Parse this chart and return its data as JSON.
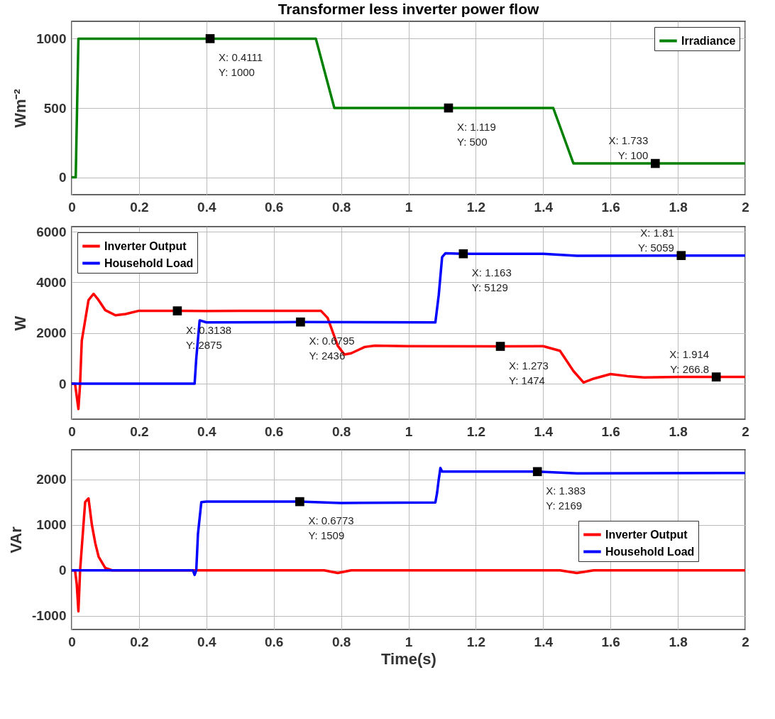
{
  "chart_data": [
    {
      "type": "line",
      "title": "Transformer less inverter power flow",
      "ylabel": "Wm⁻²",
      "xlim": [
        0,
        2
      ],
      "xticks": [
        0,
        0.2,
        0.4,
        0.6,
        0.8,
        1,
        1.2,
        1.4,
        1.6,
        1.8,
        2
      ],
      "ylim": [
        -125,
        1125
      ],
      "yticks": [
        0,
        500,
        1000
      ],
      "grid": true,
      "legend": "top right",
      "series": [
        {
          "name": "Irradiance",
          "color": "#008000",
          "x": [
            0,
            0.012,
            0.02,
            0.4111,
            0.725,
            0.78,
            1.119,
            1.43,
            1.49,
            1.733,
            2
          ],
          "values": [
            0,
            0,
            1000,
            1000,
            1000,
            500,
            500,
            500,
            100,
            100,
            100
          ]
        }
      ],
      "annotations": [
        {
          "text": "X: 0.4111\nY: 1000",
          "x": 0.4111,
          "y": 1000
        },
        {
          "text": "X: 1.119\nY: 500",
          "x": 1.119,
          "y": 500
        },
        {
          "text": "X: 1.733\nY: 100",
          "x": 1.733,
          "y": 100
        }
      ]
    },
    {
      "type": "line",
      "ylabel": "W",
      "xlim": [
        0,
        2
      ],
      "xticks": [
        0,
        0.2,
        0.4,
        0.6,
        0.8,
        1,
        1.2,
        1.4,
        1.6,
        1.8,
        2
      ],
      "ylim": [
        -1400,
        6200
      ],
      "yticks": [
        0,
        2000,
        4000,
        6000
      ],
      "grid": true,
      "legend": "top left",
      "series": [
        {
          "name": "Inverter Output",
          "color": "#ff0000",
          "x": [
            0,
            0.01,
            0.02,
            0.025,
            0.03,
            0.04,
            0.05,
            0.065,
            0.08,
            0.1,
            0.13,
            0.16,
            0.2,
            0.3138,
            0.4,
            0.5,
            0.6,
            0.74,
            0.76,
            0.79,
            0.81,
            0.83,
            0.87,
            0.9,
            1.0,
            1.273,
            1.4,
            1.45,
            1.49,
            1.52,
            1.55,
            1.6,
            1.65,
            1.7,
            1.8,
            1.914,
            2
          ],
          "values": [
            0,
            0,
            -1000,
            0,
            1700,
            2500,
            3300,
            3550,
            3300,
            2900,
            2700,
            2750,
            2880,
            2875,
            2870,
            2880,
            2880,
            2880,
            2600,
            1500,
            1150,
            1200,
            1450,
            1500,
            1480,
            1474,
            1480,
            1300,
            500,
            50,
            200,
            380,
            300,
            250,
            270,
            266.8,
            270
          ]
        },
        {
          "name": "Household Load",
          "color": "#0000ff",
          "x": [
            0,
            0.365,
            0.37,
            0.38,
            0.4,
            0.6,
            0.6795,
            1.08,
            1.09,
            1.1,
            1.11,
            1.163,
            1.4,
            1.5,
            1.81,
            2
          ],
          "values": [
            0,
            0,
            1000,
            2500,
            2420,
            2430,
            2436,
            2420,
            3500,
            5000,
            5150,
            5129,
            5130,
            5050,
            5059,
            5060
          ]
        }
      ],
      "annotations": [
        {
          "text": "X: 0.3138\nY: 2875",
          "x": 0.3138,
          "y": 2875
        },
        {
          "text": "X: 0.6795\nY: 2436",
          "x": 0.6795,
          "y": 2436
        },
        {
          "text": "X: 1.163\nY: 5129",
          "x": 1.163,
          "y": 5129
        },
        {
          "text": "X: 1.273\nY: 1474",
          "x": 1.273,
          "y": 1474
        },
        {
          "text": "X: 1.81\nY: 5059",
          "x": 1.81,
          "y": 5059
        },
        {
          "text": "X: 1.914\nY: 266.8",
          "x": 1.914,
          "y": 266.8
        }
      ]
    },
    {
      "type": "line",
      "xlabel": "Time(s)",
      "ylabel": "VAr",
      "xlim": [
        0,
        2
      ],
      "xticks": [
        0,
        0.2,
        0.4,
        0.6,
        0.8,
        1,
        1.2,
        1.4,
        1.6,
        1.8,
        2
      ],
      "ylim": [
        -1300,
        2650
      ],
      "yticks": [
        -1000,
        0,
        1000,
        2000
      ],
      "grid": true,
      "legend": "right",
      "series": [
        {
          "name": "Inverter Output",
          "color": "#ff0000",
          "x": [
            0,
            0.01,
            0.015,
            0.02,
            0.025,
            0.03,
            0.04,
            0.05,
            0.06,
            0.07,
            0.08,
            0.1,
            0.12,
            0.37,
            0.75,
            0.79,
            0.83,
            1.45,
            1.5,
            1.55,
            2
          ],
          "values": [
            0,
            0,
            -300,
            -900,
            0,
            500,
            1500,
            1580,
            1000,
            600,
            300,
            50,
            0,
            0,
            0,
            -60,
            0,
            0,
            -60,
            0,
            0
          ]
        },
        {
          "name": "Household Load",
          "color": "#0000ff",
          "x": [
            0,
            0.36,
            0.365,
            0.37,
            0.375,
            0.385,
            0.4,
            0.6773,
            0.8,
            1.08,
            1.085,
            1.09,
            1.095,
            1.1,
            1.383,
            1.5,
            2
          ],
          "values": [
            0,
            0,
            -100,
            0,
            800,
            1500,
            1510,
            1509,
            1480,
            1490,
            1700,
            2000,
            2250,
            2170,
            2169,
            2130,
            2140
          ]
        }
      ],
      "annotations": [
        {
          "text": "X: 0.6773\nY: 1509",
          "x": 0.6773,
          "y": 1509
        },
        {
          "text": "X: 1.383\nY: 2169",
          "x": 1.383,
          "y": 2169
        }
      ]
    }
  ]
}
